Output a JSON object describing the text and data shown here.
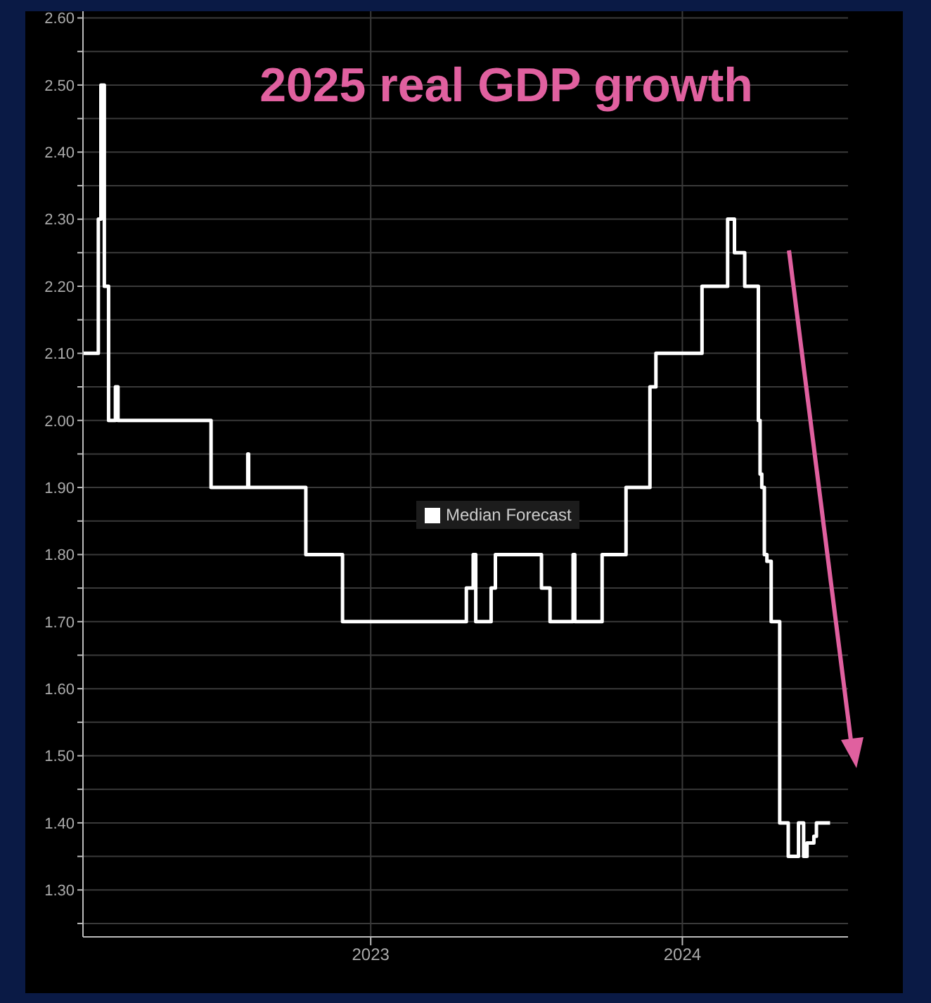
{
  "chart_data": {
    "type": "step",
    "title": "2025 real GDP growth",
    "legend": "center",
    "grid": true,
    "marker": "none",
    "line_style": "solid",
    "x": [
      "2022-01-29",
      "2022-02-16",
      "2022-02-19",
      "2022-02-23",
      "2022-02-28",
      "2022-03-08",
      "2022-03-11",
      "2022-06-28",
      "2022-08-10",
      "2022-08-11",
      "2022-10-17",
      "2022-11-29",
      "2023-04-23",
      "2023-05-01",
      "2023-05-04",
      "2023-05-22",
      "2023-05-27",
      "2023-07-20",
      "2023-07-30",
      "2023-08-26",
      "2023-08-28",
      "2023-09-29",
      "2023-10-27",
      "2023-11-24",
      "2023-12-01",
      "2024-01-24",
      "2024-02-23",
      "2024-03-02",
      "2024-03-14",
      "2024-03-28",
      "2024-03-30",
      "2024-04-01",
      "2024-04-03",
      "2024-04-06",
      "2024-04-09",
      "2024-04-14",
      "2024-04-24",
      "2024-05-04",
      "2024-05-16",
      "2024-05-22",
      "2024-05-26",
      "2024-06-03",
      "2024-06-06",
      "2024-06-22"
    ],
    "series": [
      {
        "name": "Median Forecast",
        "color": "#ffffff",
        "values": [
          2.1,
          2.3,
          2.5,
          2.2,
          2.0,
          2.05,
          2.0,
          1.9,
          1.95,
          1.9,
          1.8,
          1.7,
          1.75,
          1.8,
          1.7,
          1.75,
          1.8,
          1.75,
          1.7,
          1.8,
          1.7,
          1.8,
          1.9,
          2.05,
          2.1,
          2.2,
          2.3,
          2.25,
          2.2,
          2.2,
          2.0,
          1.92,
          1.9,
          1.8,
          1.79,
          1.7,
          1.4,
          1.35,
          1.4,
          1.35,
          1.37,
          1.38,
          1.4,
          1.4
        ]
      }
    ],
    "xlim": [
      "2022-01-29",
      "2024-07-13"
    ],
    "xticks": [
      {
        "value": "2023",
        "label": "2023"
      },
      {
        "value": "2024",
        "label": "2024"
      }
    ],
    "ylim": [
      1.23,
      2.61
    ],
    "yticks": [
      {
        "value": 1.25,
        "label": null
      },
      {
        "value": 1.3,
        "label": "1.30"
      },
      {
        "value": 1.35,
        "label": null
      },
      {
        "value": 1.4,
        "label": "1.40"
      },
      {
        "value": 1.45,
        "label": null
      },
      {
        "value": 1.5,
        "label": "1.50"
      },
      {
        "value": 1.55,
        "label": null
      },
      {
        "value": 1.6,
        "label": "1.60"
      },
      {
        "value": 1.65,
        "label": null
      },
      {
        "value": 1.7,
        "label": "1.70"
      },
      {
        "value": 1.75,
        "label": null
      },
      {
        "value": 1.8,
        "label": "1.80"
      },
      {
        "value": 1.85,
        "label": null
      },
      {
        "value": 1.9,
        "label": "1.90"
      },
      {
        "value": 1.95,
        "label": null
      },
      {
        "value": 2.0,
        "label": "2.00"
      },
      {
        "value": 2.05,
        "label": null
      },
      {
        "value": 2.1,
        "label": "2.10"
      },
      {
        "value": 2.15,
        "label": null
      },
      {
        "value": 2.2,
        "label": "2.20"
      },
      {
        "value": 2.25,
        "label": null
      },
      {
        "value": 2.3,
        "label": "2.30"
      },
      {
        "value": 2.35,
        "label": null
      },
      {
        "value": 2.4,
        "label": "2.40"
      },
      {
        "value": 2.45,
        "label": null
      },
      {
        "value": 2.5,
        "label": "2.50"
      },
      {
        "value": 2.55,
        "label": null
      },
      {
        "value": 2.6,
        "label": "2.60"
      }
    ]
  }
}
